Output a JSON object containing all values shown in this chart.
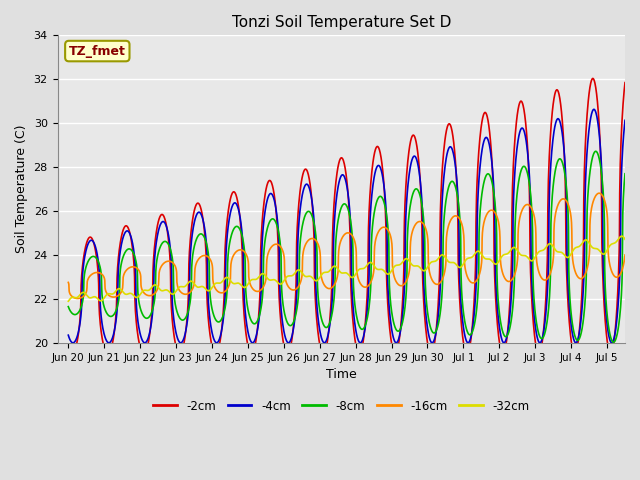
{
  "title": "Tonzi Soil Temperature Set D",
  "xlabel": "Time",
  "ylabel": "Soil Temperature (C)",
  "annotation": "TZ_fmet",
  "ylim": [
    20,
    34
  ],
  "xlim": [
    -0.3,
    15.5
  ],
  "yticks": [
    20,
    22,
    24,
    26,
    28,
    30,
    32,
    34
  ],
  "xtick_labels": [
    "Jun 20",
    "Jun 21",
    "Jun 22",
    "Jun 23",
    "Jun 24",
    "Jun 25",
    "Jun 26",
    "Jun 27",
    "Jun 28",
    "Jun 29",
    "Jun 30",
    "Jul 1",
    "Jul 2",
    "Jul 3",
    "Jul 4",
    "Jul 5"
  ],
  "xtick_positions": [
    0,
    1,
    2,
    3,
    4,
    5,
    6,
    7,
    8,
    9,
    10,
    11,
    12,
    13,
    14,
    15
  ],
  "series": [
    {
      "label": "-2cm",
      "color": "#dd0000",
      "lw": 1.2
    },
    {
      "label": "-4cm",
      "color": "#0000cc",
      "lw": 1.2
    },
    {
      "label": "-8cm",
      "color": "#00bb00",
      "lw": 1.2
    },
    {
      "label": "-16cm",
      "color": "#ff8800",
      "lw": 1.2
    },
    {
      "label": "-32cm",
      "color": "#dddd00",
      "lw": 1.2
    }
  ],
  "fig_bg_color": "#e0e0e0",
  "plot_bg_color": "#e8e8e8",
  "grid_color": "#ffffff",
  "n_points": 2000
}
